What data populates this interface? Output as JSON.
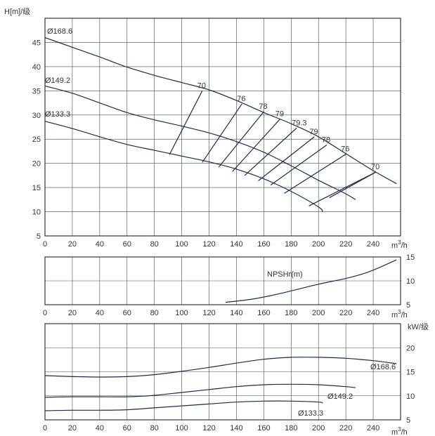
{
  "chart_data": [
    {
      "type": "line",
      "ylabel": "H[m]/级",
      "xunit": "m3/h",
      "xlim": [
        0,
        260
      ],
      "ylim": [
        5,
        50
      ],
      "xticks": [
        0,
        20,
        40,
        60,
        80,
        100,
        120,
        140,
        160,
        180,
        200,
        220,
        240
      ],
      "yticks": [
        5,
        10,
        15,
        20,
        25,
        30,
        35,
        40,
        45
      ],
      "grid": true,
      "series": [
        {
          "name": "Ø168.6",
          "x": [
            0,
            20,
            40,
            60,
            80,
            100,
            120,
            140,
            160,
            180,
            200,
            220,
            240,
            257
          ],
          "y": [
            46.0,
            44.0,
            42.0,
            39.9,
            38.2,
            36.7,
            35.2,
            33.0,
            30.5,
            28.2,
            25.5,
            22.0,
            18.5,
            15.8
          ]
        },
        {
          "name": "Ø149.2",
          "x": [
            0,
            20,
            40,
            60,
            80,
            100,
            120,
            140,
            160,
            180,
            200,
            220,
            227
          ],
          "y": [
            36.0,
            34.5,
            32.5,
            30.5,
            29.0,
            27.7,
            26.3,
            24.5,
            22.3,
            19.5,
            16.5,
            13.7,
            12.5
          ]
        },
        {
          "name": "Ø133.3",
          "x": [
            0,
            20,
            40,
            60,
            80,
            100,
            120,
            140,
            160,
            180,
            200,
            203
          ],
          "y": [
            28.7,
            27.2,
            25.5,
            23.9,
            22.7,
            21.5,
            20.3,
            18.8,
            16.8,
            14.2,
            11.0,
            10.0
          ]
        }
      ],
      "efficiency_lines": [
        {
          "label": "70",
          "x": [
            91,
            115
          ],
          "y": [
            21.8,
            35.0
          ]
        },
        {
          "label": "76",
          "x": [
            115,
            144
          ],
          "y": [
            20.2,
            32.3
          ]
        },
        {
          "label": "78",
          "x": [
            127,
            160
          ],
          "y": [
            19.2,
            30.7
          ]
        },
        {
          "label": "79",
          "x": [
            137,
            172
          ],
          "y": [
            18.3,
            29.2
          ]
        },
        {
          "label": "79.3",
          "x": [
            146,
            184
          ],
          "y": [
            17.5,
            27.3
          ]
        },
        {
          "label": "79",
          "x": [
            156,
            197
          ],
          "y": [
            16.4,
            25.5
          ]
        },
        {
          "label": "78",
          "x": [
            165,
            206
          ],
          "y": [
            15.5,
            23.8
          ]
        },
        {
          "label": "76",
          "x": [
            175,
            220
          ],
          "y": [
            13.8,
            21.9
          ]
        },
        {
          "label": "70",
          "x": [
            193,
            242
          ],
          "y": [
            11.2,
            18.2
          ]
        },
        {
          "label": "",
          "x": [
            208,
            242
          ],
          "y": [
            12.9,
            18.2
          ]
        }
      ]
    },
    {
      "type": "line",
      "xunit": "m3/h",
      "xlim": [
        0,
        260
      ],
      "ylim": [
        5,
        15
      ],
      "xticks": [
        0,
        20,
        40,
        60,
        80,
        100,
        120,
        140,
        160,
        180,
        200,
        220,
        240
      ],
      "yticks": [
        5,
        10,
        15
      ],
      "grid": true,
      "series": [
        {
          "name": "NPSHr(m)",
          "x": [
            132,
            150,
            165,
            180,
            200,
            220,
            235,
            247,
            257
          ],
          "y": [
            5.5,
            6.1,
            6.9,
            7.9,
            9.3,
            10.5,
            11.7,
            13.1,
            14.4
          ]
        }
      ]
    },
    {
      "type": "line",
      "ylabel": "kW/级",
      "xunit": "m3/h",
      "xlim": [
        0,
        260
      ],
      "ylim": [
        5,
        25
      ],
      "xticks": [
        0,
        20,
        40,
        60,
        80,
        100,
        120,
        140,
        160,
        180,
        200,
        220,
        240
      ],
      "yticks": [
        5,
        10,
        15,
        20
      ],
      "grid": true,
      "series": [
        {
          "name": "Ø168.6",
          "x": [
            0,
            20,
            40,
            60,
            80,
            100,
            120,
            140,
            160,
            180,
            200,
            220,
            240,
            257
          ],
          "y": [
            14.2,
            14.0,
            13.9,
            14.0,
            14.4,
            15.1,
            15.9,
            16.8,
            17.6,
            18.0,
            18.0,
            17.8,
            17.3,
            16.7
          ]
        },
        {
          "name": "Ø149.2",
          "x": [
            0,
            20,
            40,
            60,
            80,
            100,
            120,
            140,
            160,
            180,
            200,
            220,
            227
          ],
          "y": [
            9.7,
            9.8,
            9.8,
            9.8,
            10.1,
            10.7,
            11.3,
            11.9,
            12.3,
            12.4,
            12.3,
            11.9,
            11.7
          ]
        },
        {
          "name": "Ø133.3",
          "x": [
            0,
            20,
            40,
            60,
            80,
            100,
            120,
            140,
            160,
            180,
            200,
            203
          ],
          "y": [
            6.9,
            7.0,
            7.0,
            7.1,
            7.5,
            7.9,
            8.3,
            8.7,
            8.9,
            8.9,
            8.7,
            8.5
          ]
        }
      ]
    }
  ],
  "labels": {
    "head_axis_title": "H[m]/级",
    "power_axis_title": "kW/级",
    "flow_unit_base": "m",
    "flow_unit_sup": "3",
    "flow_unit_tail": "/h",
    "npsh_curve_label": "NPSHr(m)",
    "d1686_head": "Ø168.6",
    "d1492_head": "Ø149.2",
    "d1333_head": "Ø133.3",
    "d1686_power": "Ø168.6",
    "d1492_power": "Ø149.2",
    "d1333_power": "Ø133.3"
  },
  "colors": {
    "curve": "#1b2a4e",
    "grid": "#4a4a4a",
    "text": "#333333"
  }
}
